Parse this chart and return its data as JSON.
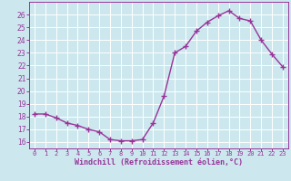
{
  "x": [
    0,
    1,
    2,
    3,
    4,
    5,
    6,
    7,
    8,
    9,
    10,
    11,
    12,
    13,
    14,
    15,
    16,
    17,
    18,
    19,
    20,
    21,
    22,
    23
  ],
  "y": [
    18.2,
    18.2,
    17.9,
    17.5,
    17.3,
    17.0,
    16.8,
    16.2,
    16.1,
    16.1,
    16.2,
    17.5,
    19.6,
    23.0,
    23.5,
    24.7,
    25.4,
    25.9,
    26.3,
    25.7,
    25.5,
    24.0,
    22.9,
    21.9
  ],
  "line_color": "#993399",
  "marker_color": "#993399",
  "bg_color": "#cce8ee",
  "grid_color": "#ffffff",
  "xlabel": "Windchill (Refroidissement éolien,°C)",
  "xlabel_color": "#993399",
  "tick_color": "#993399",
  "spine_color": "#993399",
  "ylim": [
    15.5,
    27.0
  ],
  "xlim": [
    -0.5,
    23.5
  ],
  "yticks": [
    16,
    17,
    18,
    19,
    20,
    21,
    22,
    23,
    24,
    25,
    26
  ],
  "xticks": [
    0,
    1,
    2,
    3,
    4,
    5,
    6,
    7,
    8,
    9,
    10,
    11,
    12,
    13,
    14,
    15,
    16,
    17,
    18,
    19,
    20,
    21,
    22,
    23
  ]
}
